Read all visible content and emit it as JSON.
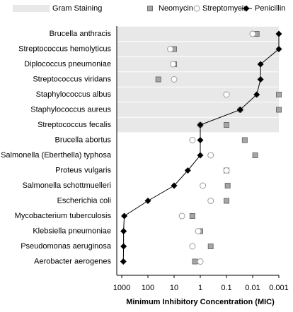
{
  "chart_data": {
    "type": "dot",
    "x_label": "Minimum Inhibitory Concentration (MIC)",
    "categories": [
      "Brucella anthracis",
      "Streptococcus hemolyticus",
      "Diplococcus pneumoniae",
      "Streptococcus viridans",
      "Staphylococcus albus",
      "Staphylococcus aureus",
      "Streptococcus fecalis",
      "Brucella abortus",
      "Salmonella (Eberthella) typhosa",
      "Proteus vulgaris",
      "Salmonella schottmuelleri",
      "Escherichia coli",
      "Mycobacterium tuberculosis",
      "Klebsiella pneumoniae",
      "Pseudomonas aeruginosa",
      "Aerobacter aerogenes"
    ],
    "series": [
      {
        "name": "Gram Staining",
        "color": "#e8e8e8",
        "marker": "band",
        "shaded": [
          true,
          true,
          true,
          true,
          true,
          true,
          true,
          false,
          false,
          false,
          false,
          false,
          false,
          false,
          false,
          false
        ]
      },
      {
        "name": "Neomycin",
        "color": "#a6a6a6",
        "marker": "square",
        "values": [
          0.007,
          10,
          10,
          40,
          0.001,
          0.001,
          0.1,
          0.02,
          0.008,
          0.1,
          0.09,
          0.1,
          2,
          1,
          0.4,
          1.6
        ]
      },
      {
        "name": "Streptomycin",
        "color": "#ffffff",
        "marker": "circle",
        "values": [
          0.01,
          14,
          11,
          10,
          0.1,
          0.03,
          1,
          2,
          0.4,
          0.1,
          0.8,
          0.4,
          5,
          1.2,
          2,
          1
        ]
      },
      {
        "name": "Penicillin",
        "color": "#000000",
        "marker": "diamond-line",
        "values": [
          0.001,
          0.001,
          0.005,
          0.005,
          0.007,
          0.03,
          1,
          1,
          1,
          3,
          10,
          100,
          800,
          850,
          850,
          870
        ]
      }
    ],
    "log_x": true,
    "xlim": [
      1000,
      0.001
    ],
    "xticks": [
      1000,
      100,
      10,
      1,
      0.1,
      0.01,
      0.001
    ]
  }
}
